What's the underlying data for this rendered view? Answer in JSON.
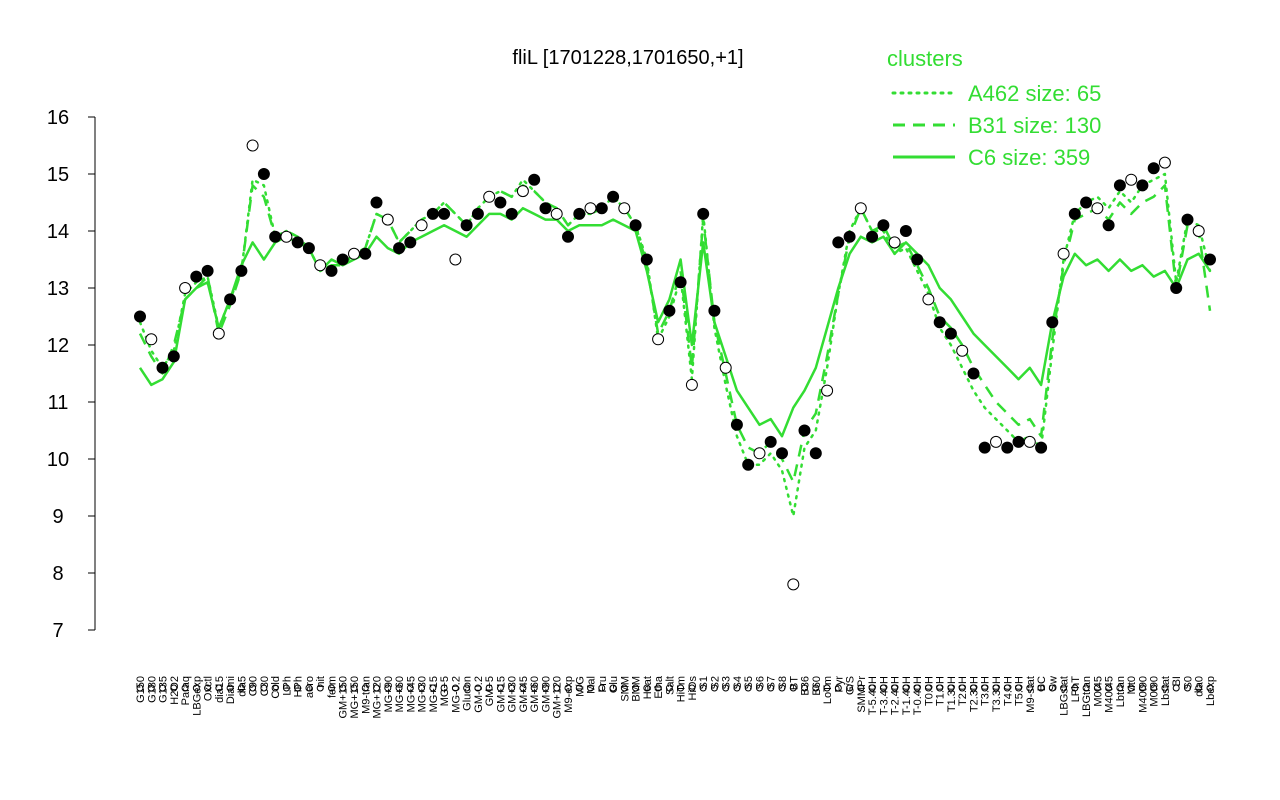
{
  "chart_data": {
    "type": "line",
    "title": "fliL [1701228,1701650,+1]",
    "ylim": [
      7,
      16
    ],
    "y_ticks": [
      7,
      8,
      9,
      10,
      11,
      12,
      13,
      14,
      15,
      16
    ],
    "x_tick_labels": [
      "G150",
      "G180",
      "G135",
      "H2O2",
      "Paraq",
      "LBGexp",
      "Oxctl",
      "dia15",
      "Diami",
      "dia5",
      "C90",
      "C30",
      "Cold",
      "LPh",
      "HPh",
      "aero",
      "nit",
      "ferm",
      "GM+150",
      "MG+150",
      "M9-tran",
      "MG+120",
      "MG+90",
      "MG+60",
      "MG+45",
      "MG+30",
      "MG+15",
      "MG+5",
      "MG-0.2",
      "Glucon",
      "GM-0.2",
      "GM+5",
      "GM+15",
      "GM+30",
      "GM+45",
      "GM+60",
      "GM+90",
      "GM+120",
      "M9-exp",
      "M/G",
      "Mal",
      "Fru",
      "Glu",
      "SMM",
      "BMM",
      "Heat",
      "Etha",
      "Salt",
      "HiTm",
      "HiOs",
      "S1",
      "S2",
      "S3",
      "S4",
      "S5",
      "S6",
      "S7",
      "S8",
      "BT",
      "B36",
      "B60",
      "LoTm",
      "Pyr",
      "G/S",
      "SMMPr",
      "T-5.40H",
      "T-3.40H",
      "T-2.40H",
      "T-1.40H",
      "T-0.40H",
      "T0.0H",
      "T1.0H",
      "T1.30H",
      "T2.0H",
      "T2.30H",
      "T3.0H",
      "T3.30H",
      "T4.0H",
      "T5.0H",
      "M9-stat",
      "BC",
      "Sw",
      "LBGstat",
      "LPhT",
      "LBGtran",
      "M0t45",
      "M40t45",
      "Lbtran",
      "Mt0",
      "M40t90",
      "M0t90",
      "Lbstat",
      "BI",
      "S0",
      "dia0",
      "Lbexp"
    ],
    "legend": {
      "title": "clusters",
      "placement": "top-right",
      "entries": [
        {
          "label": "A462 size: 65",
          "style": "dotted"
        },
        {
          "label": "B31 size: 130",
          "style": "dashed"
        },
        {
          "label": "C6 size: 359",
          "style": "solid"
        }
      ]
    },
    "series": [
      {
        "name": "C6 size: 359",
        "style": "solid",
        "color": "#33dd33",
        "values": [
          11.6,
          11.3,
          11.4,
          11.7,
          12.8,
          13.0,
          13.1,
          12.3,
          12.8,
          13.4,
          13.8,
          13.5,
          13.8,
          13.9,
          13.8,
          13.7,
          13.3,
          13.5,
          13.4,
          13.5,
          13.6,
          13.9,
          13.7,
          13.6,
          13.8,
          13.9,
          14.0,
          14.1,
          14.0,
          13.9,
          14.1,
          14.3,
          14.3,
          14.2,
          14.4,
          14.3,
          14.2,
          14.2,
          14.0,
          14.1,
          14.1,
          14.1,
          14.2,
          14.1,
          14.0,
          13.3,
          12.4,
          12.8,
          13.5,
          12.0,
          13.8,
          12.4,
          11.8,
          11.2,
          10.9,
          10.6,
          10.7,
          10.4,
          10.9,
          11.2,
          11.6,
          12.3,
          13.0,
          13.6,
          13.9,
          13.8,
          13.9,
          13.6,
          13.8,
          13.6,
          13.4,
          13.0,
          12.8,
          12.5,
          12.2,
          12.0,
          11.8,
          11.6,
          11.4,
          11.6,
          11.3,
          12.4,
          13.2,
          13.6,
          13.4,
          13.5,
          13.3,
          13.5,
          13.3,
          13.4,
          13.2,
          13.3,
          13.0,
          13.5,
          13.6,
          13.3
        ]
      },
      {
        "name": "B31 size: 130",
        "style": "dashed",
        "color": "#33dd33",
        "values": [
          12.2,
          11.8,
          11.5,
          12.0,
          12.8,
          13.0,
          13.2,
          12.2,
          12.7,
          13.3,
          14.8,
          14.6,
          13.9,
          14.0,
          13.9,
          13.7,
          13.3,
          13.4,
          13.4,
          13.6,
          13.7,
          14.3,
          14.2,
          13.8,
          14.0,
          14.2,
          14.3,
          14.5,
          14.3,
          14.1,
          14.4,
          14.6,
          14.7,
          14.6,
          14.8,
          14.7,
          14.5,
          14.4,
          14.1,
          14.3,
          14.3,
          14.4,
          14.6,
          14.4,
          14.1,
          13.4,
          12.2,
          12.6,
          13.3,
          11.6,
          14.2,
          12.4,
          11.5,
          10.6,
          10.2,
          10.1,
          10.3,
          10.0,
          9.6,
          10.5,
          10.8,
          11.8,
          12.9,
          13.9,
          14.4,
          14.0,
          14.1,
          13.7,
          13.8,
          13.4,
          13.0,
          12.5,
          12.3,
          12.0,
          11.6,
          11.3,
          11.0,
          10.8,
          10.6,
          10.7,
          10.4,
          12.1,
          13.4,
          14.2,
          14.3,
          14.4,
          14.2,
          14.5,
          14.3,
          14.5,
          14.6,
          14.8,
          13.0,
          14.1,
          14.0,
          12.6
        ]
      },
      {
        "name": "A462 size: 65",
        "style": "dotted",
        "color": "#33dd33",
        "values": [
          12.4,
          11.9,
          11.6,
          11.9,
          12.9,
          13.1,
          13.2,
          12.3,
          12.8,
          13.3,
          14.9,
          14.8,
          13.9,
          14.0,
          13.9,
          13.7,
          13.3,
          13.4,
          13.4,
          13.6,
          13.7,
          14.3,
          14.2,
          13.8,
          14.0,
          14.2,
          14.3,
          14.5,
          14.3,
          14.1,
          14.4,
          14.6,
          14.7,
          14.6,
          14.9,
          14.7,
          14.5,
          14.4,
          14.1,
          14.3,
          14.3,
          14.4,
          14.6,
          14.4,
          14.1,
          13.5,
          12.1,
          12.5,
          13.2,
          11.4,
          14.3,
          12.3,
          11.3,
          10.4,
          9.9,
          9.9,
          10.1,
          9.8,
          9.0,
          10.2,
          10.5,
          11.6,
          12.9,
          14.0,
          14.4,
          14.0,
          14.0,
          13.6,
          13.7,
          13.3,
          12.9,
          12.3,
          12.0,
          11.6,
          11.2,
          10.9,
          10.7,
          10.5,
          10.3,
          10.4,
          10.2,
          11.9,
          13.5,
          14.3,
          14.5,
          14.6,
          14.4,
          14.7,
          14.5,
          14.8,
          14.9,
          15.0,
          13.1,
          14.2,
          14.1,
          13.3
        ]
      },
      {
        "name": "fliL",
        "style": "points",
        "values": [
          12.5,
          12.1,
          11.6,
          11.8,
          13.0,
          13.2,
          13.3,
          12.2,
          12.8,
          13.3,
          15.5,
          15.0,
          13.9,
          13.9,
          13.8,
          13.7,
          13.4,
          13.3,
          13.5,
          13.6,
          13.6,
          14.5,
          14.2,
          13.7,
          13.8,
          14.1,
          14.3,
          14.3,
          13.5,
          14.1,
          14.3,
          14.6,
          14.5,
          14.3,
          14.7,
          14.9,
          14.4,
          14.3,
          13.9,
          14.3,
          14.4,
          14.4,
          14.6,
          14.4,
          14.1,
          13.5,
          12.1,
          12.6,
          13.1,
          11.3,
          14.3,
          12.6,
          11.6,
          10.6,
          9.9,
          10.1,
          10.3,
          10.1,
          7.8,
          10.5,
          10.1,
          11.2,
          13.8,
          13.9,
          14.4,
          13.9,
          14.1,
          13.8,
          14.0,
          13.5,
          12.8,
          12.4,
          12.2,
          11.9,
          11.5,
          10.2,
          10.3,
          10.2,
          10.3,
          10.3,
          10.2,
          12.4,
          13.6,
          14.3,
          14.5,
          14.4,
          14.1,
          14.8,
          14.9,
          14.8,
          15.1,
          15.2,
          13.0,
          14.2,
          14.0,
          13.5
        ]
      }
    ]
  }
}
